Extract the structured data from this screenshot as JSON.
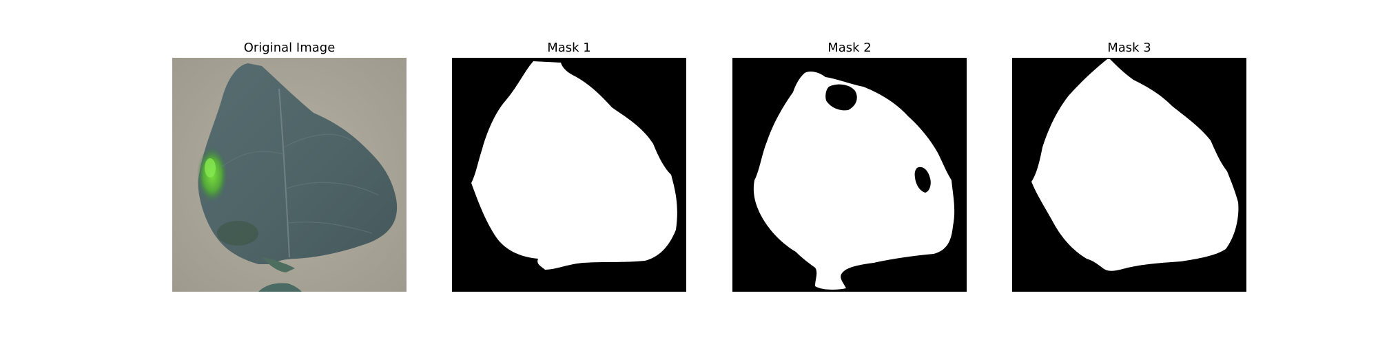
{
  "figure": {
    "panels": [
      {
        "title": "Original Image"
      },
      {
        "title": "Mask 1"
      },
      {
        "title": "Mask 2"
      },
      {
        "title": "Mask 3"
      }
    ]
  },
  "colors": {
    "background": "#ffffff",
    "mask_foreground": "#ffffff",
    "mask_background": "#000000",
    "leaf_main": "#4f6568",
    "leaf_bright_spot": "#6fd43a",
    "leaf_backdrop": "#aaa69a"
  }
}
